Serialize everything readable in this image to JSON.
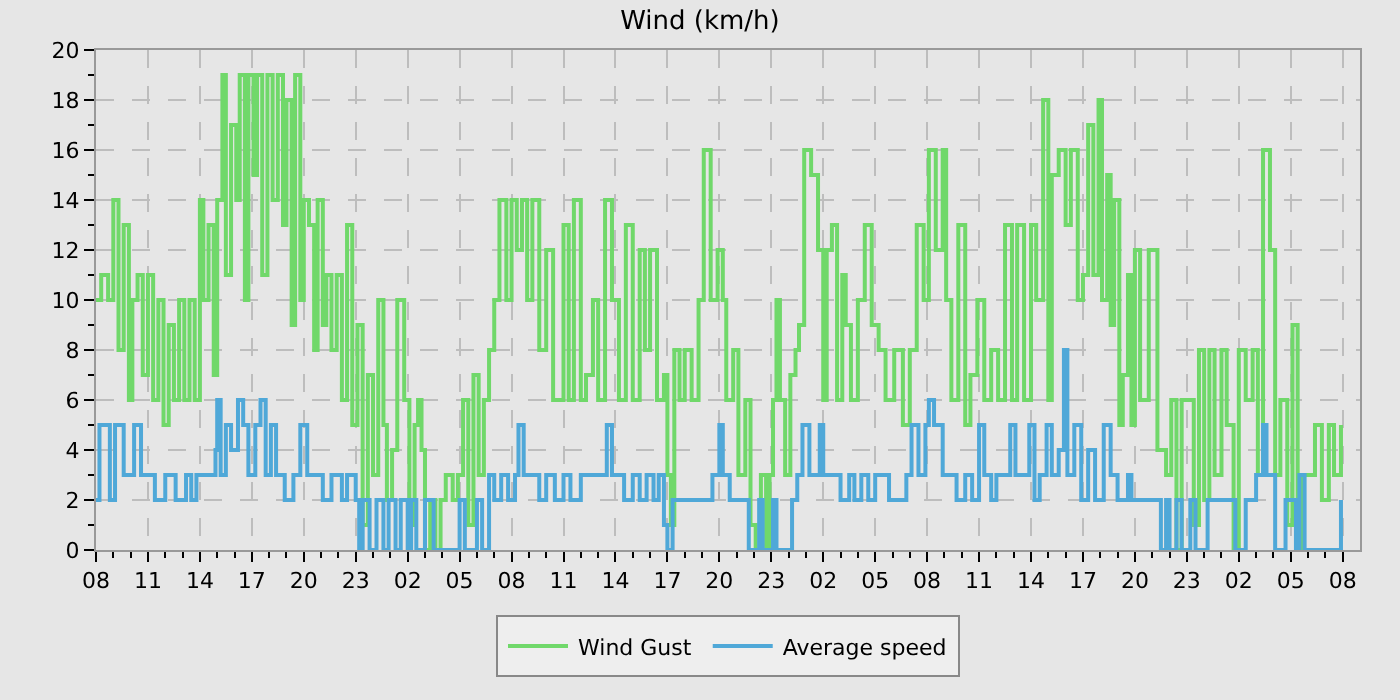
{
  "chart_data": {
    "type": "step",
    "title": "Wind (km/h)",
    "xlim": [
      "--01-01T08:00",
      "--01-04T09:00"
    ],
    "ylim": [
      0,
      20
    ],
    "xticks": [
      {
        "value": "--01-01T08:00",
        "label": "08"
      },
      {
        "value": "--01-01T09:00",
        "label": null
      },
      {
        "value": "--01-01T10:00",
        "label": null
      },
      {
        "value": "--01-01T11:00",
        "label": "11"
      },
      {
        "value": "--01-01T12:00",
        "label": null
      },
      {
        "value": "--01-01T13:00",
        "label": null
      },
      {
        "value": "--01-01T14:00",
        "label": "14"
      },
      {
        "value": "--01-01T15:00",
        "label": null
      },
      {
        "value": "--01-01T16:00",
        "label": null
      },
      {
        "value": "--01-01T17:00",
        "label": "17"
      },
      {
        "value": "--01-01T18:00",
        "label": null
      },
      {
        "value": "--01-01T19:00",
        "label": null
      },
      {
        "value": "--01-01T20:00",
        "label": "20"
      },
      {
        "value": "--01-01T21:00",
        "label": null
      },
      {
        "value": "--01-01T22:00",
        "label": null
      },
      {
        "value": "--01-01T23:00",
        "label": "23"
      },
      {
        "value": "--01-02T00:00",
        "label": null
      },
      {
        "value": "--01-02T01:00",
        "label": null
      },
      {
        "value": "--01-02T02:00",
        "label": "02"
      },
      {
        "value": "--01-02T03:00",
        "label": null
      },
      {
        "value": "--01-02T04:00",
        "label": null
      },
      {
        "value": "--01-02T05:00",
        "label": "05"
      },
      {
        "value": "--01-02T06:00",
        "label": null
      },
      {
        "value": "--01-02T07:00",
        "label": null
      },
      {
        "value": "--01-02T08:00",
        "label": "08"
      },
      {
        "value": "--01-02T09:00",
        "label": null
      },
      {
        "value": "--01-02T10:00",
        "label": null
      },
      {
        "value": "--01-02T11:00",
        "label": "11"
      },
      {
        "value": "--01-02T12:00",
        "label": null
      },
      {
        "value": "--01-02T13:00",
        "label": null
      },
      {
        "value": "--01-02T14:00",
        "label": "14"
      },
      {
        "value": "--01-02T15:00",
        "label": null
      },
      {
        "value": "--01-02T16:00",
        "label": null
      },
      {
        "value": "--01-02T17:00",
        "label": "17"
      },
      {
        "value": "--01-02T18:00",
        "label": null
      },
      {
        "value": "--01-02T19:00",
        "label": null
      },
      {
        "value": "--01-02T20:00",
        "label": "20"
      },
      {
        "value": "--01-02T21:00",
        "label": null
      },
      {
        "value": "--01-02T22:00",
        "label": null
      },
      {
        "value": "--01-02T23:00",
        "label": "23"
      },
      {
        "value": "--01-03T00:00",
        "label": null
      },
      {
        "value": "--01-03T01:00",
        "label": null
      },
      {
        "value": "--01-03T02:00",
        "label": "02"
      },
      {
        "value": "--01-03T03:00",
        "label": null
      },
      {
        "value": "--01-03T04:00",
        "label": null
      },
      {
        "value": "--01-03T05:00",
        "label": "05"
      },
      {
        "value": "--01-03T06:00",
        "label": null
      },
      {
        "value": "--01-03T07:00",
        "label": null
      },
      {
        "value": "--01-03T08:00",
        "label": "08"
      },
      {
        "value": "--01-03T09:00",
        "label": null
      },
      {
        "value": "--01-03T10:00",
        "label": null
      },
      {
        "value": "--01-03T11:00",
        "label": "11"
      },
      {
        "value": "--01-03T12:00",
        "label": null
      },
      {
        "value": "--01-03T13:00",
        "label": null
      },
      {
        "value": "--01-03T14:00",
        "label": "14"
      },
      {
        "value": "--01-03T15:00",
        "label": null
      },
      {
        "value": "--01-03T16:00",
        "label": null
      },
      {
        "value": "--01-03T17:00",
        "label": "17"
      },
      {
        "value": "--01-03T18:00",
        "label": null
      },
      {
        "value": "--01-03T19:00",
        "label": null
      },
      {
        "value": "--01-03T20:00",
        "label": "20"
      },
      {
        "value": "--01-03T21:00",
        "label": null
      },
      {
        "value": "--01-03T22:00",
        "label": null
      },
      {
        "value": "--01-03T23:00",
        "label": "23"
      },
      {
        "value": "--01-04T00:00",
        "label": null
      },
      {
        "value": "--01-04T01:00",
        "label": null
      },
      {
        "value": "--01-04T02:00",
        "label": "02"
      },
      {
        "value": "--01-04T03:00",
        "label": null
      },
      {
        "value": "--01-04T04:00",
        "label": null
      },
      {
        "value": "--01-04T05:00",
        "label": "05"
      },
      {
        "value": "--01-04T06:00",
        "label": null
      },
      {
        "value": "--01-04T07:00",
        "label": null
      },
      {
        "value": "--01-04T08:00",
        "label": "08"
      }
    ],
    "yticks": [
      0,
      {
        "value": 1,
        "label": null
      },
      2,
      {
        "value": 3,
        "label": null
      },
      4,
      {
        "value": 5,
        "label": null
      },
      6,
      {
        "value": 7,
        "label": null
      },
      8,
      {
        "value": 9,
        "label": null
      },
      10,
      {
        "value": 11,
        "label": null
      },
      12,
      {
        "value": 13,
        "label": null
      },
      14,
      {
        "value": 15,
        "label": null
      },
      16,
      {
        "value": 17,
        "label": null
      },
      18,
      {
        "value": 19,
        "label": null
      },
      20
    ],
    "grid": true,
    "legend": "bottom",
    "line_style": "solid",
    "marker": "none",
    "series": [
      {
        "name": "Wind Gust",
        "color": "#70d86a",
        "x": [
          "--01-01T08:00",
          "--01-01T08:18",
          "--01-01T08:42",
          "--01-01T09:00",
          "--01-01T09:18",
          "--01-01T09:36",
          "--01-01T09:54",
          "--01-01T10:06",
          "--01-01T10:24",
          "--01-01T10:42",
          "--01-01T11:00",
          "--01-01T11:18",
          "--01-01T11:36",
          "--01-01T11:54",
          "--01-01T12:12",
          "--01-01T12:30",
          "--01-01T12:48",
          "--01-01T13:06",
          "--01-01T13:24",
          "--01-01T13:42",
          "--01-01T14:00",
          "--01-01T14:12",
          "--01-01T14:30",
          "--01-01T14:48",
          "--01-01T15:00",
          "--01-01T15:18",
          "--01-01T15:30",
          "--01-01T15:48",
          "--01-01T16:06",
          "--01-01T16:18",
          "--01-01T16:36",
          "--01-01T16:48",
          "--01-01T17:06",
          "--01-01T17:18",
          "--01-01T17:36",
          "--01-01T17:54",
          "--01-01T18:12",
          "--01-01T18:30",
          "--01-01T18:48",
          "--01-01T19:00",
          "--01-01T19:18",
          "--01-01T19:30",
          "--01-01T19:48",
          "--01-01T20:00",
          "--01-01T20:18",
          "--01-01T20:36",
          "--01-01T20:48",
          "--01-01T21:06",
          "--01-01T21:18",
          "--01-01T21:36",
          "--01-01T21:54",
          "--01-01T22:12",
          "--01-01T22:30",
          "--01-01T22:48",
          "--01-01T23:06",
          "--01-01T23:24",
          "--01-01T23:42",
          "--01-02T00:00",
          "--01-02T00:18",
          "--01-02T00:36",
          "--01-02T00:48",
          "--01-02T01:06",
          "--01-02T01:24",
          "--01-02T01:48",
          "--01-02T02:06",
          "--01-02T02:24",
          "--01-02T02:36",
          "--01-02T02:48",
          "--01-02T03:00",
          "--01-02T03:18",
          "--01-02T03:36",
          "--01-02T03:54",
          "--01-02T04:12",
          "--01-02T04:36",
          "--01-02T04:54",
          "--01-02T05:12",
          "--01-02T05:30",
          "--01-02T05:48",
          "--01-02T06:06",
          "--01-02T06:24",
          "--01-02T06:42",
          "--01-02T07:00",
          "--01-02T07:18",
          "--01-02T07:42",
          "--01-02T08:00",
          "--01-02T08:18",
          "--01-02T08:36",
          "--01-02T08:54",
          "--01-02T09:12",
          "--01-02T09:36",
          "--01-02T10:00",
          "--01-02T10:24",
          "--01-02T11:00",
          "--01-02T11:18",
          "--01-02T11:36",
          "--01-02T12:00",
          "--01-02T12:18",
          "--01-02T12:42",
          "--01-02T13:00",
          "--01-02T13:24",
          "--01-02T13:48",
          "--01-02T14:12",
          "--01-02T14:36",
          "--01-02T15:00",
          "--01-02T15:24",
          "--01-02T15:42",
          "--01-02T16:00",
          "--01-02T16:24",
          "--01-02T16:48",
          "--01-02T17:00",
          "--01-02T17:12",
          "--01-02T17:24",
          "--01-02T17:42",
          "--01-02T18:00",
          "--01-02T18:24",
          "--01-02T18:48",
          "--01-02T19:06",
          "--01-02T19:30",
          "--01-02T19:54",
          "--01-02T20:12",
          "--01-02T20:24",
          "--01-02T20:48",
          "--01-02T21:06",
          "--01-02T21:30",
          "--01-02T21:48",
          "--01-02T22:06",
          "--01-02T22:24",
          "--01-02T22:42",
          "--01-02T22:54",
          "--01-02T23:06",
          "--01-02T23:18",
          "--01-02T23:30",
          "--01-02T23:48",
          "--01-03T00:06",
          "--01-03T00:24",
          "--01-03T00:36",
          "--01-03T00:54",
          "--01-03T01:18",
          "--01-03T01:42",
          "--01-03T02:00",
          "--01-03T02:12",
          "--01-03T02:30",
          "--01-03T02:48",
          "--01-03T03:06",
          "--01-03T03:18",
          "--01-03T03:36",
          "--01-03T04:00",
          "--01-03T04:24",
          "--01-03T04:48",
          "--01-03T05:12",
          "--01-03T05:36",
          "--01-03T06:06",
          "--01-03T06:36",
          "--01-03T07:00",
          "--01-03T07:24",
          "--01-03T07:48",
          "--01-03T08:06",
          "--01-03T08:30",
          "--01-03T08:54",
          "--01-03T09:06",
          "--01-03T09:24",
          "--01-03T09:48",
          "--01-03T10:12",
          "--01-03T10:30",
          "--01-03T10:54",
          "--01-03T11:18",
          "--01-03T11:42",
          "--01-03T12:06",
          "--01-03T12:30",
          "--01-03T12:54",
          "--01-03T13:12",
          "--01-03T13:36",
          "--01-03T14:00",
          "--01-03T14:18",
          "--01-03T14:42",
          "--01-03T15:00",
          "--01-03T15:12",
          "--01-03T15:36",
          "--01-03T16:00",
          "--01-03T16:18",
          "--01-03T16:42",
          "--01-03T17:00",
          "--01-03T17:18",
          "--01-03T17:36",
          "--01-03T17:54",
          "--01-03T18:06",
          "--01-03T18:24",
          "--01-03T18:36",
          "--01-03T18:48",
          "--01-03T19:06",
          "--01-03T19:18",
          "--01-03T19:36",
          "--01-03T19:48",
          "--01-03T20:00",
          "--01-03T20:18",
          "--01-03T20:48",
          "--01-03T21:18",
          "--01-03T21:48",
          "--01-03T22:06",
          "--01-03T22:24",
          "--01-03T22:42",
          "--01-03T23:06",
          "--01-03T23:24",
          "--01-03T23:42",
          "--01-04T00:00",
          "--01-04T00:18",
          "--01-04T00:36",
          "--01-04T01:00",
          "--01-04T01:18",
          "--01-04T01:42",
          "--01-04T02:00",
          "--01-04T02:24",
          "--01-04T02:48",
          "--01-04T03:06",
          "--01-04T03:24",
          "--01-04T03:48",
          "--01-04T04:06",
          "--01-04T04:24",
          "--01-04T04:48",
          "--01-04T05:06",
          "--01-04T05:24",
          "--01-04T05:42",
          "--01-04T06:00",
          "--01-04T06:24",
          "--01-04T06:48",
          "--01-04T07:12",
          "--01-04T07:30",
          "--01-04T07:54"
        ],
        "values": [
          10,
          11,
          10,
          14,
          8,
          13,
          6,
          10,
          11,
          7,
          11,
          6,
          10,
          5,
          9,
          6,
          10,
          6,
          10,
          6,
          14,
          10,
          13,
          7,
          14,
          19,
          11,
          17,
          14,
          19,
          10,
          19,
          15,
          19,
          11,
          19,
          14,
          19,
          13,
          18,
          9,
          19,
          10,
          14,
          13,
          8,
          14,
          9,
          11,
          8,
          11,
          6,
          13,
          5,
          9,
          1,
          7,
          3,
          10,
          5,
          2,
          4,
          10,
          6,
          1,
          5,
          6,
          4,
          0,
          2,
          0,
          2,
          3,
          2,
          3,
          6,
          1,
          7,
          3,
          6,
          8,
          10,
          14,
          10,
          14,
          12,
          14,
          10,
          14,
          8,
          12,
          6,
          13,
          6,
          14,
          6,
          7,
          10,
          6,
          14,
          10,
          6,
          13,
          6,
          12,
          8,
          12,
          6,
          7,
          3,
          1,
          8,
          6,
          8,
          6,
          10,
          16,
          10,
          12,
          10,
          6,
          8,
          3,
          6,
          1,
          0,
          3,
          0,
          3,
          6,
          10,
          6,
          3,
          7,
          8,
          9,
          16,
          15,
          12,
          6,
          12,
          13,
          6,
          11,
          9,
          6,
          10,
          13,
          9,
          8,
          6,
          8,
          5,
          8,
          13,
          10,
          16,
          12,
          16,
          10,
          6,
          13,
          5,
          7,
          10,
          6,
          8,
          6,
          13,
          6,
          13,
          6,
          13,
          10,
          18,
          6,
          15,
          16,
          13,
          16,
          10,
          11,
          17,
          11,
          18,
          10,
          15,
          9,
          14,
          5,
          7,
          11,
          5,
          12,
          6,
          12,
          4,
          3,
          6,
          0,
          6,
          6,
          1,
          8,
          2,
          8,
          3,
          8,
          5,
          0,
          8,
          6,
          8,
          3,
          16,
          12,
          3,
          6,
          1,
          9,
          0,
          3,
          3,
          5,
          2,
          5,
          3,
          5
        ]
      },
      {
        "name": "Average speed",
        "color": "#4fa8d8",
        "x": [
          "--01-01T08:00",
          "--01-01T08:12",
          "--01-01T08:48",
          "--01-01T09:06",
          "--01-01T09:36",
          "--01-01T10:12",
          "--01-01T10:36",
          "--01-01T11:24",
          "--01-01T12:00",
          "--01-01T12:36",
          "--01-01T13:12",
          "--01-01T13:30",
          "--01-01T13:48",
          "--01-01T14:54",
          "--01-01T15:00",
          "--01-01T15:12",
          "--01-01T15:30",
          "--01-01T15:48",
          "--01-01T16:12",
          "--01-01T16:30",
          "--01-01T16:48",
          "--01-01T17:12",
          "--01-01T17:30",
          "--01-01T17:48",
          "--01-01T18:06",
          "--01-01T18:24",
          "--01-01T18:54",
          "--01-01T19:24",
          "--01-01T19:48",
          "--01-01T20:12",
          "--01-01T20:48",
          "--01-01T21:06",
          "--01-01T21:36",
          "--01-01T22:12",
          "--01-01T22:30",
          "--01-01T23:00",
          "--01-01T23:12",
          "--01-01T23:24",
          "--01-01T23:48",
          "--01-02T00:12",
          "--01-02T00:36",
          "--01-02T00:54",
          "--01-02T01:18",
          "--01-02T01:36",
          "--01-02T02:00",
          "--01-02T02:12",
          "--01-02T02:30",
          "--01-02T03:00",
          "--01-02T03:30",
          "--01-02T04:12",
          "--01-02T05:00",
          "--01-02T05:18",
          "--01-02T06:00",
          "--01-02T06:18",
          "--01-02T06:42",
          "--01-02T07:00",
          "--01-02T07:24",
          "--01-02T07:48",
          "--01-02T08:12",
          "--01-02T08:24",
          "--01-02T08:42",
          "--01-02T09:36",
          "--01-02T10:00",
          "--01-02T10:30",
          "--01-02T11:00",
          "--01-02T11:24",
          "--01-02T12:00",
          "--01-02T13:18",
          "--01-02T13:30",
          "--01-02T13:48",
          "--01-02T14:30",
          "--01-02T15:00",
          "--01-02T15:24",
          "--01-02T15:48",
          "--01-02T16:12",
          "--01-02T16:30",
          "--01-02T16:48",
          "--01-02T17:00",
          "--01-02T17:18",
          "--01-02T18:00",
          "--01-02T19:00",
          "--01-02T19:36",
          "--01-02T20:00",
          "--01-02T20:12",
          "--01-02T20:36",
          "--01-02T21:42",
          "--01-02T22:18",
          "--01-02T22:30",
          "--01-02T23:06",
          "--01-02T23:18",
          "--01-03T00:12",
          "--01-03T00:30",
          "--01-03T00:48",
          "--01-03T01:12",
          "--01-03T01:48",
          "--01-03T02:00",
          "--01-03T03:00",
          "--01-03T03:30",
          "--01-03T03:48",
          "--01-03T04:12",
          "--01-03T04:36",
          "--01-03T05:00",
          "--01-03T05:48",
          "--01-03T06:48",
          "--01-03T07:06",
          "--01-03T07:30",
          "--01-03T07:54",
          "--01-03T08:06",
          "--01-03T08:24",
          "--01-03T08:54",
          "--01-03T09:42",
          "--01-03T10:12",
          "--01-03T10:36",
          "--01-03T11:00",
          "--01-03T11:18",
          "--01-03T11:42",
          "--01-03T12:00",
          "--01-03T12:48",
          "--01-03T13:06",
          "--01-03T13:54",
          "--01-03T14:12",
          "--01-03T14:30",
          "--01-03T14:54",
          "--01-03T15:12",
          "--01-03T15:36",
          "--01-03T15:54",
          "--01-03T16:06",
          "--01-03T16:30",
          "--01-03T16:54",
          "--01-03T17:18",
          "--01-03T17:42",
          "--01-03T18:12",
          "--01-03T18:36",
          "--01-03T19:00",
          "--01-03T19:36",
          "--01-03T19:48",
          "--01-03T21:30",
          "--01-03T21:48",
          "--01-03T22:00",
          "--01-03T22:24",
          "--01-03T22:42",
          "--01-03T23:12",
          "--01-03T23:30",
          "--01-04T00:12",
          "--01-04T01:30",
          "--01-04T01:48",
          "--01-04T02:24",
          "--01-04T03:00",
          "--01-04T03:24",
          "--01-04T03:36",
          "--01-04T04:06",
          "--01-04T04:42",
          "--01-04T05:18",
          "--01-04T05:30",
          "--01-04T05:48",
          "--01-04T07:54"
        ],
        "values": [
          2,
          5,
          2,
          5,
          3,
          5,
          3,
          2,
          3,
          2,
          3,
          2,
          3,
          4,
          6,
          3,
          5,
          4,
          6,
          5,
          3,
          5,
          6,
          3,
          5,
          3,
          2,
          3,
          5,
          3,
          3,
          2,
          3,
          2,
          3,
          2,
          0,
          2,
          0,
          2,
          0,
          2,
          0,
          2,
          0,
          2,
          0,
          2,
          0,
          0,
          2,
          0,
          2,
          0,
          3,
          2,
          3,
          2,
          3,
          5,
          3,
          2,
          3,
          2,
          3,
          2,
          3,
          3,
          5,
          3,
          2,
          3,
          2,
          3,
          2,
          3,
          1,
          0,
          2,
          2,
          2,
          3,
          5,
          3,
          2,
          0,
          2,
          0,
          2,
          0,
          2,
          3,
          5,
          3,
          5,
          3,
          2,
          3,
          2,
          3,
          2,
          3,
          2,
          3,
          5,
          3,
          5,
          6,
          5,
          3,
          2,
          3,
          2,
          5,
          3,
          2,
          3,
          5,
          3,
          5,
          2,
          3,
          5,
          3,
          4,
          8,
          3,
          5,
          2,
          4,
          2,
          5,
          3,
          2,
          3,
          2,
          0,
          2,
          0,
          2,
          0,
          2,
          0,
          2,
          2,
          0,
          2,
          3,
          5,
          3,
          0,
          2,
          0,
          3,
          0,
          2
        ]
      }
    ]
  }
}
